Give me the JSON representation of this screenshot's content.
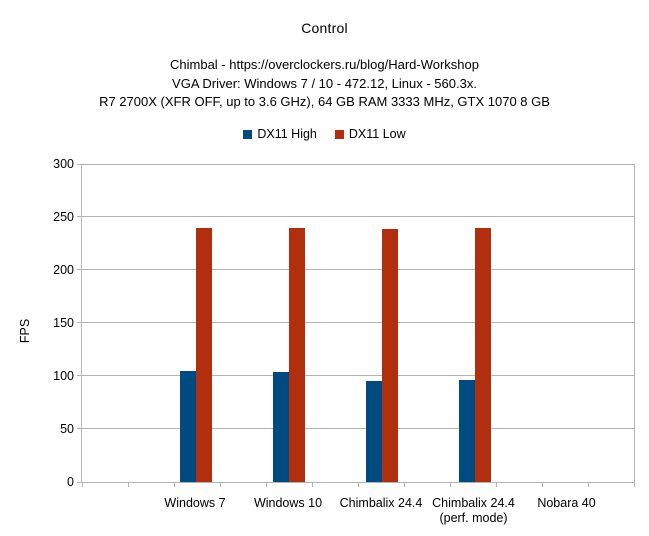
{
  "chart_data": {
    "type": "bar",
    "title": "Control",
    "subtitle_lines": [
      "Chimbal - https://overclockers.ru/blog/Hard-Workshop",
      "VGA Driver: Windows 7 / 10 - 472.12, Linux - 560.3x.",
      "R7 2700X (XFR OFF, up to 3.6 GHz), 64 GB RAM 3333 MHz, GTX 1070 8 GB"
    ],
    "ylabel": "FPS",
    "ylim": [
      0,
      300
    ],
    "ytick_interval": 50,
    "ytick_labels": [
      "0",
      "50",
      "100",
      "150",
      "200",
      "250",
      "300"
    ],
    "grid": true,
    "legend_position": "top-center",
    "categories": [
      {
        "lines": [
          "Windows 7"
        ]
      },
      {
        "lines": [
          "Windows 10"
        ]
      },
      {
        "lines": [
          "Chimbalix 24.4"
        ]
      },
      {
        "lines": [
          "Chimbalix 24.4",
          "(perf. mode)"
        ]
      },
      {
        "lines": [
          "Nobara 40"
        ]
      }
    ],
    "series": [
      {
        "name": "DX11 High",
        "color": "#004a82",
        "values": [
          105,
          104,
          95,
          96,
          null
        ]
      },
      {
        "name": "DX11 Low",
        "color": "#b12f0e",
        "values": [
          240,
          240,
          239,
          240,
          null
        ]
      }
    ],
    "colors": {
      "grid": "#b3b3b3",
      "axis": "#b3b3b3",
      "text": "#000000"
    }
  }
}
